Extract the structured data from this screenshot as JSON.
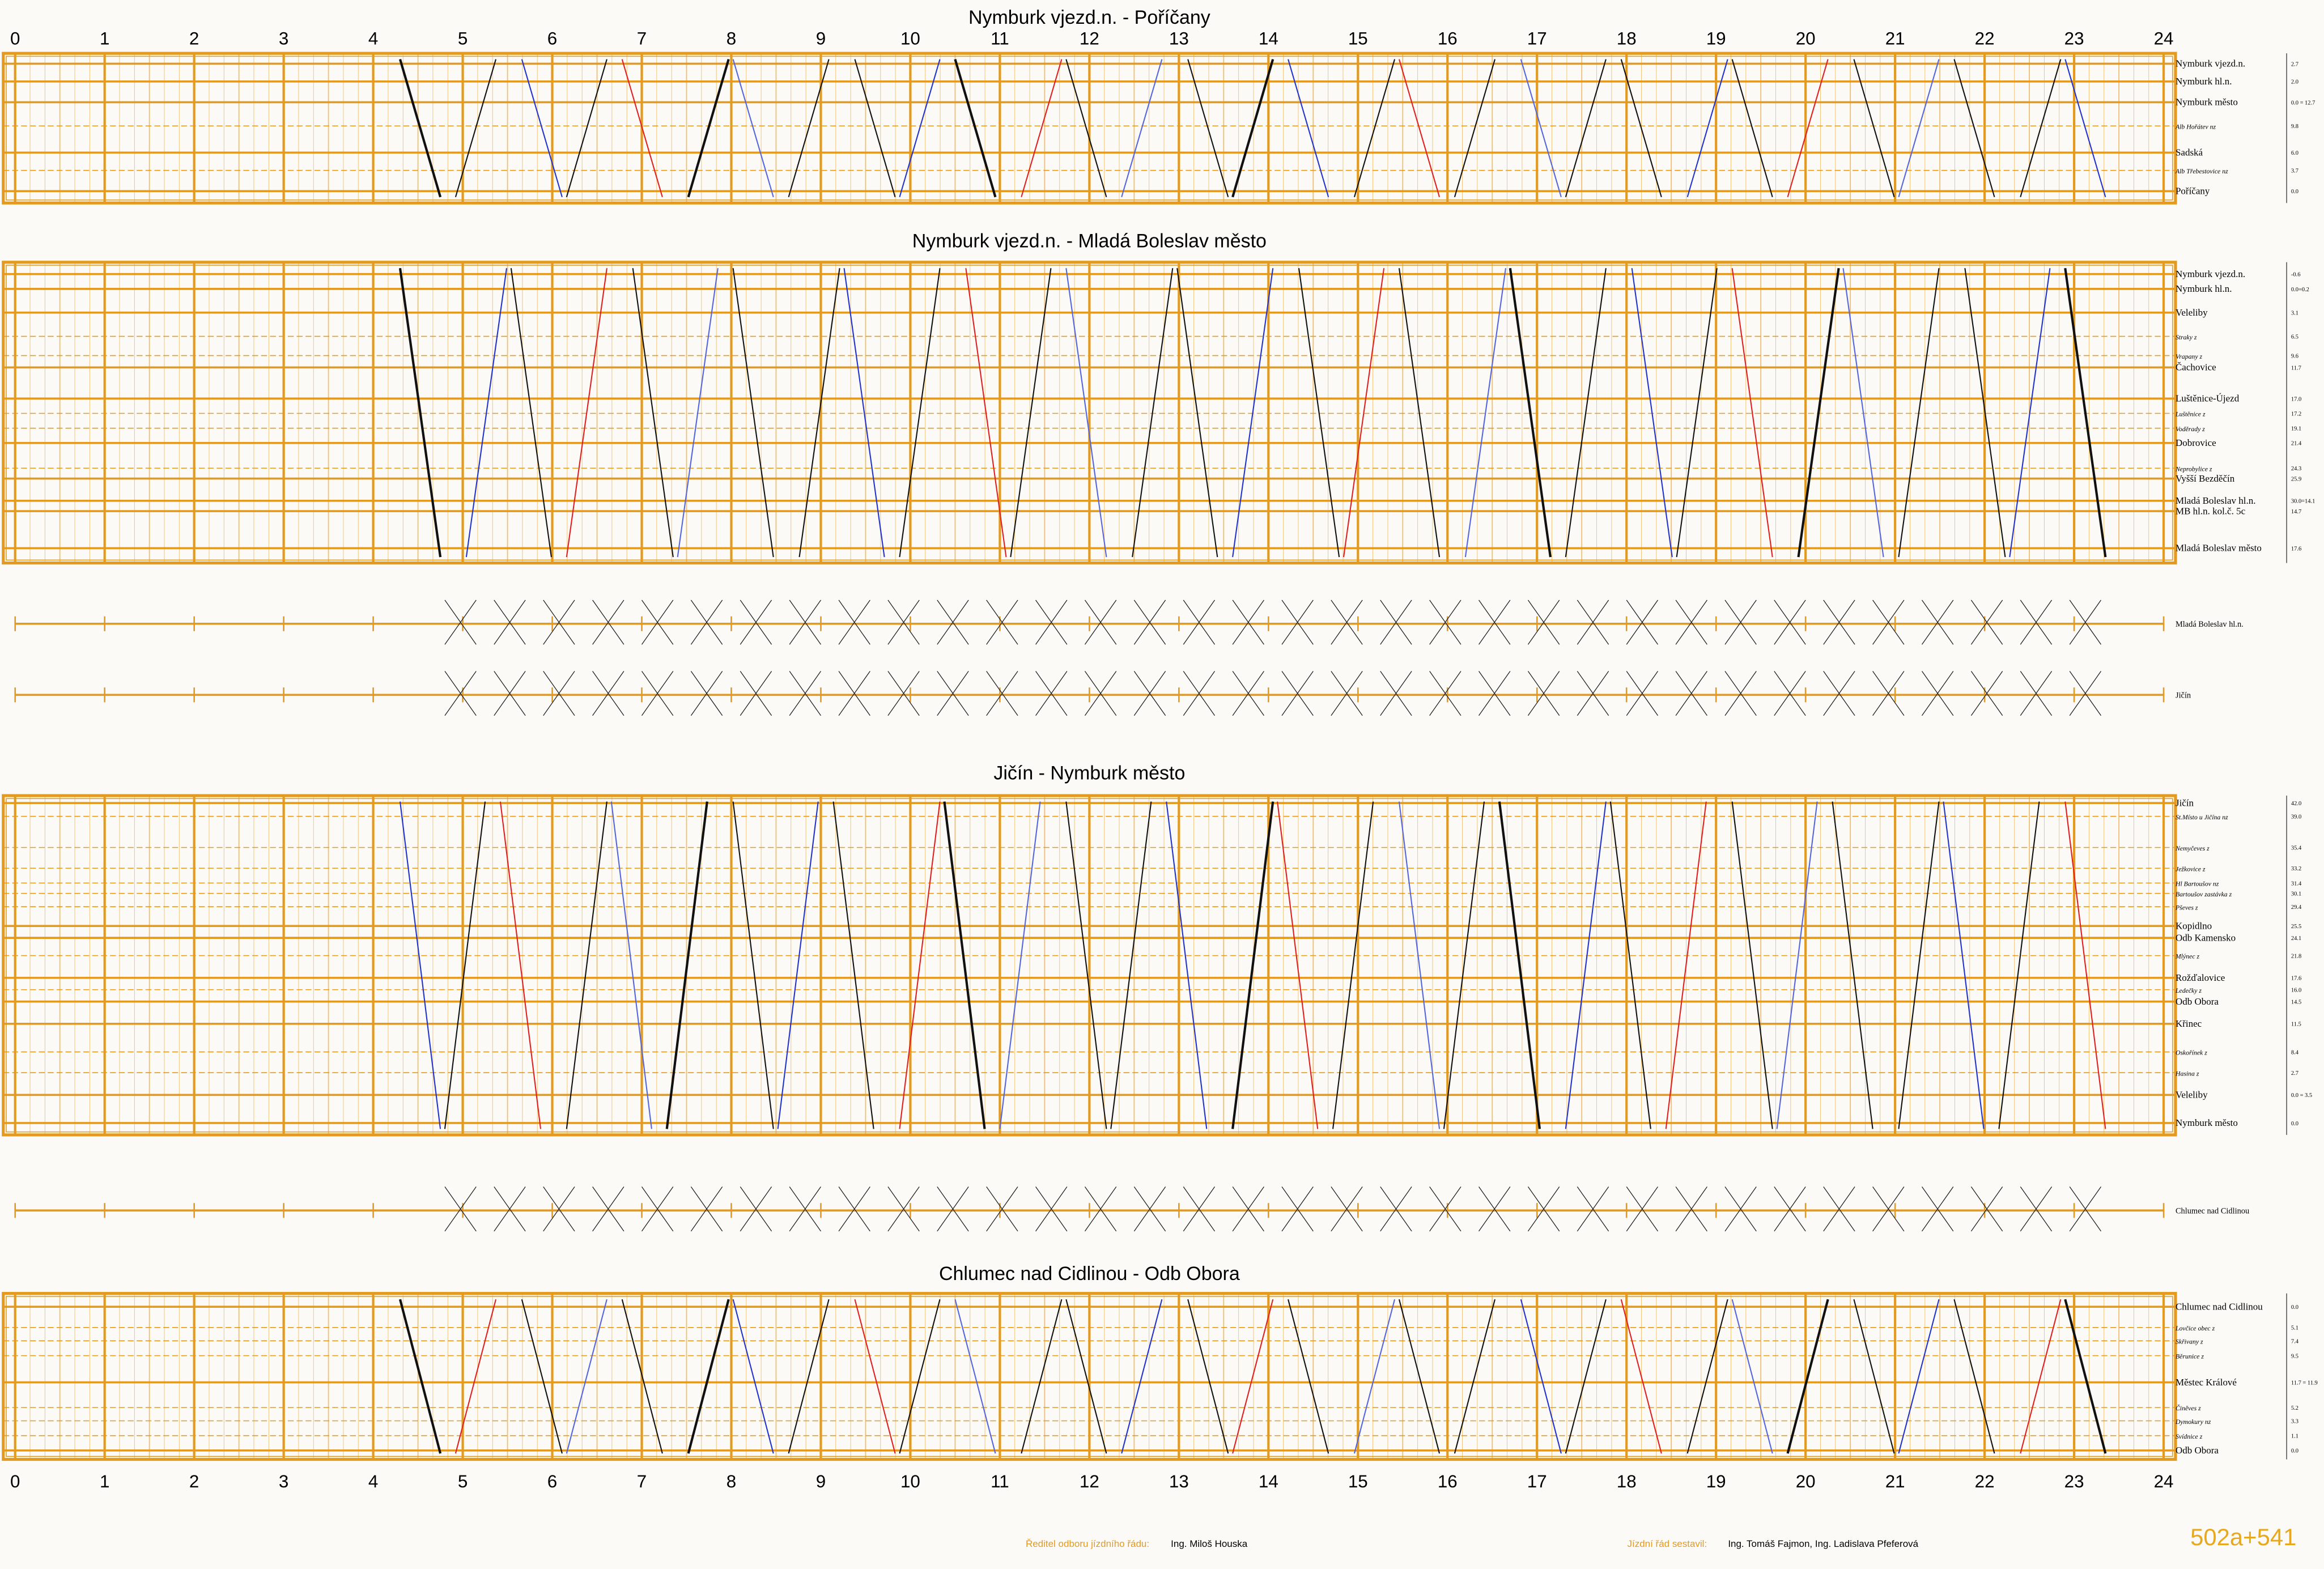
{
  "hours": [
    0,
    1,
    2,
    3,
    4,
    5,
    6,
    7,
    8,
    9,
    10,
    11,
    12,
    13,
    14,
    15,
    16,
    17,
    18,
    19,
    20,
    21,
    22,
    23,
    24
  ],
  "panels": [
    {
      "title": "Nymburk vjezd.n. - Poříčany",
      "stations": [
        {
          "name": "Nymburk vjezd.n.",
          "km": "2.7"
        },
        {
          "name": "Nymburk hl.n.",
          "km": "2.0"
        },
        {
          "name": "Nymburk město",
          "km": "0.0 = 12.7"
        },
        {
          "name": "Alb Hořátev nz",
          "km": "9.8"
        },
        {
          "name": "Sadská",
          "km": "6.0"
        },
        {
          "name": "Alb Třebestovice nz",
          "km": "3.7"
        },
        {
          "name": "Poříčany",
          "km": "0.0"
        }
      ]
    },
    {
      "title": "Nymburk vjezd.n. - Mladá Boleslav město",
      "stations": [
        {
          "name": "Nymburk vjezd.n.",
          "km": "-0.6"
        },
        {
          "name": "Nymburk hl.n.",
          "km": "0.0=0.2"
        },
        {
          "name": "Veleliby",
          "km": "3.1"
        },
        {
          "name": "Straky z",
          "km": "6.5"
        },
        {
          "name": "Vrapany z",
          "km": "9.6"
        },
        {
          "name": "Čachovice",
          "km": "11.7"
        },
        {
          "name": "Luštěnice-Újezd",
          "km": "17.0"
        },
        {
          "name": "Luštěnice z",
          "km": "17.2"
        },
        {
          "name": "Voděrady z",
          "km": "19.1"
        },
        {
          "name": "Dobrovice",
          "km": "21.4"
        },
        {
          "name": "Neprobylice z",
          "km": "24.3"
        },
        {
          "name": "Vyšší Bezděčín",
          "km": "25.9"
        },
        {
          "name": "Mladá Boleslav hl.n.",
          "km": "30.0=14.1"
        },
        {
          "name": "MB hl.n. kol.č. 5c",
          "km": "14.7"
        },
        {
          "name": "Mladá Boleslav město",
          "km": "17.6"
        }
      ]
    },
    {
      "title": "Jičín - Nymburk město",
      "stations": [
        {
          "name": "Jičín",
          "km": "42.0"
        },
        {
          "name": "St.Místo u Jičína nz",
          "km": "39.0"
        },
        {
          "name": "Nemyčeves z",
          "km": "35.4"
        },
        {
          "name": "Ježkovice z",
          "km": "33.2"
        },
        {
          "name": "Hl Bartoušov nz",
          "km": "31.4"
        },
        {
          "name": "Bartoušov zastávka z",
          "km": "30.1"
        },
        {
          "name": "Pševes z",
          "km": "29.4"
        },
        {
          "name": "Kopidlno",
          "km": "25.5"
        },
        {
          "name": "Odb Kamensko",
          "km": "24.1"
        },
        {
          "name": "Mlýnec z",
          "km": "21.8"
        },
        {
          "name": "Rožďalovice",
          "km": "17.6"
        },
        {
          "name": "Ledečky z",
          "km": "16.0"
        },
        {
          "name": "Odb Obora",
          "km": "14.5"
        },
        {
          "name": "Křinec",
          "km": "11.5"
        },
        {
          "name": "Oskořínek z",
          "km": "8.4"
        },
        {
          "name": "Hasina z",
          "km": "2.7"
        },
        {
          "name": "Veleliby",
          "km": "0.0 = 3.5"
        },
        {
          "name": "Nymburk město",
          "km": "0.0"
        }
      ]
    },
    {
      "title": "Chlumec nad Cidlinou - Odb Obora",
      "stations": [
        {
          "name": "Chlumec nad Cidlinou",
          "km": "0.0"
        },
        {
          "name": "Lovčice obec z",
          "km": "5.1"
        },
        {
          "name": "Skřivany z",
          "km": "7.4"
        },
        {
          "name": "Běrunice z",
          "km": "9.5"
        },
        {
          "name": "Městec Králové",
          "km": "11.7 = 11.9"
        },
        {
          "name": "Činěves z",
          "km": "5.2"
        },
        {
          "name": "Dymokury nz",
          "km": "3.3"
        },
        {
          "name": "Svídnice z",
          "km": "1.1"
        },
        {
          "name": "Odb Obora",
          "km": "0.0"
        }
      ]
    }
  ],
  "strips": [
    {
      "stations": [
        "Mladá Boleslav hl.n.",
        "Jičín"
      ]
    },
    {
      "stations": [
        "Chlumec nad Cidlinou"
      ]
    }
  ],
  "footer": {
    "director_label": "Ředitel odboru jízdního řádu:",
    "director": "Ing. Miloš Houska",
    "author_label": "Jízdní řád sestavil:",
    "authors": "Ing. Tomáš Fajmon, Ing. Ladislava Pfeferová",
    "code": "502a+541"
  }
}
